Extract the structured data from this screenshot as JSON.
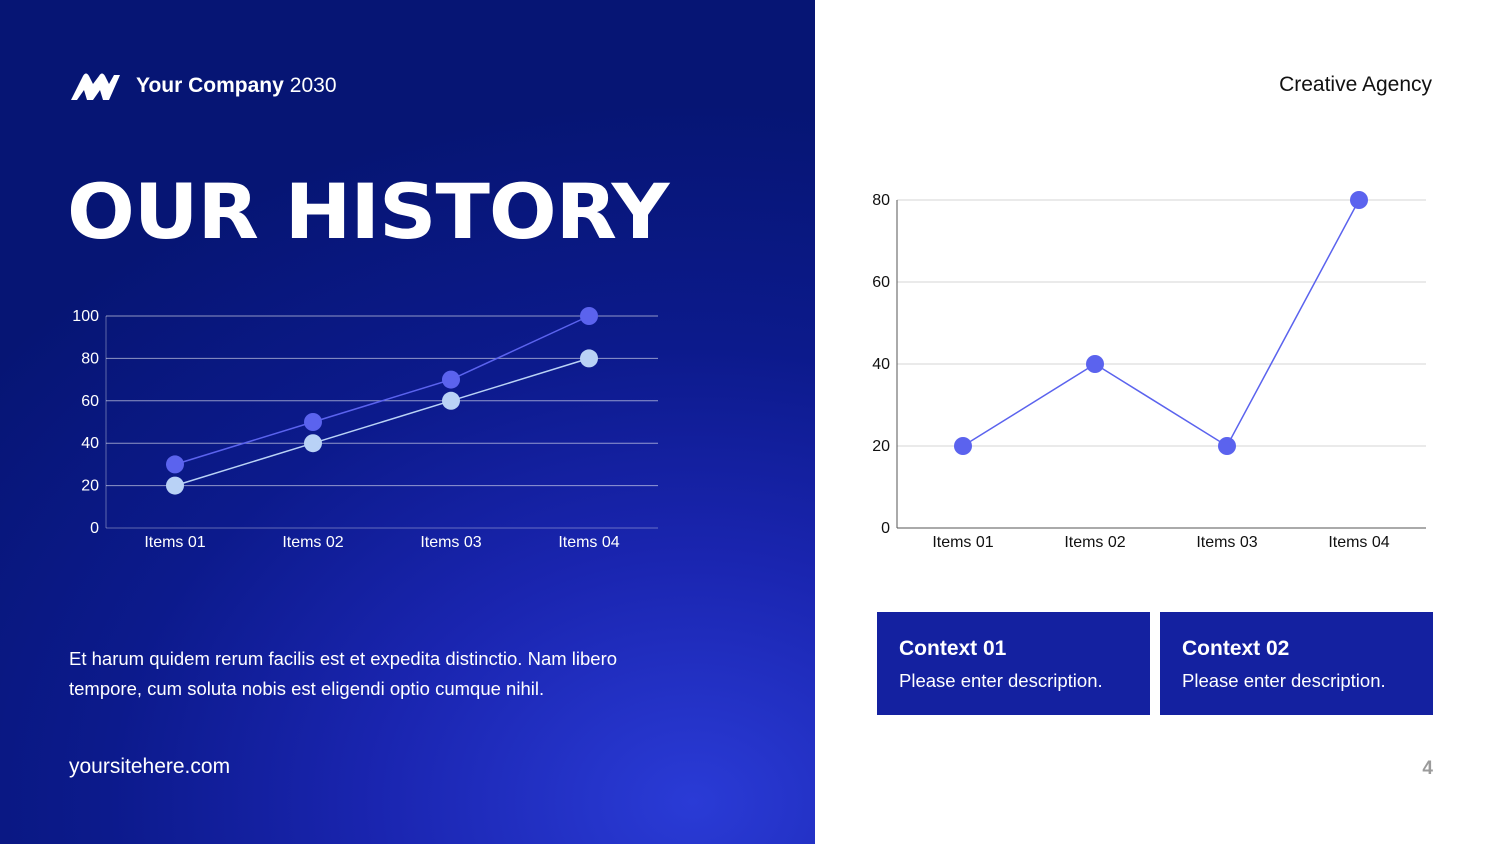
{
  "header": {
    "company_name": "Your Company",
    "year": "2030",
    "tagline": "Creative Agency"
  },
  "title": "OUR HISTORY",
  "description": "Et harum quidem rerum facilis est et expedita distinctio. Nam libero tempore, cum soluta nobis est eligendi optio cumque nihil.",
  "website": "yoursitehere.com",
  "page_number": "4",
  "contexts": [
    {
      "title": "Context 01",
      "description": "Please enter description."
    },
    {
      "title": "Context 02",
      "description": "Please enter description."
    }
  ],
  "colors": {
    "panel_dark": "#061574",
    "accent": "#5b63ee",
    "light_series": "#b9d2f6",
    "box": "#1421a0"
  },
  "chart_data": [
    {
      "type": "line",
      "categories": [
        "Items 01",
        "Items 02",
        "Items 03",
        "Items 04"
      ],
      "series": [
        {
          "values": [
            30,
            50,
            70,
            100
          ],
          "color": "#5b63ee"
        },
        {
          "values": [
            20,
            40,
            60,
            80
          ],
          "color": "#b9d2f6"
        }
      ],
      "ylim": [
        0,
        100
      ],
      "yticks": [
        0,
        20,
        40,
        60,
        80,
        100
      ],
      "grid": true
    },
    {
      "type": "line",
      "categories": [
        "Items 01",
        "Items 02",
        "Items 03",
        "Items 04"
      ],
      "series": [
        {
          "values": [
            20,
            40,
            20,
            80
          ],
          "color": "#5b63ee"
        }
      ],
      "ylim": [
        0,
        80
      ],
      "yticks": [
        0,
        20,
        40,
        60,
        80
      ],
      "grid": true
    }
  ]
}
